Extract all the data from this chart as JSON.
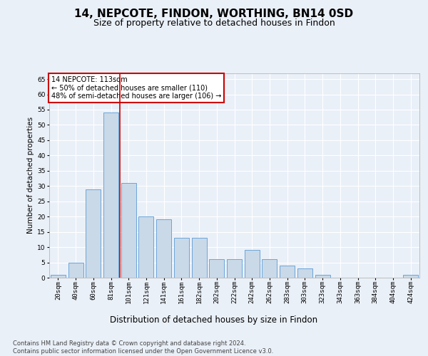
{
  "title": "14, NEPCOTE, FINDON, WORTHING, BN14 0SD",
  "subtitle": "Size of property relative to detached houses in Findon",
  "xlabel": "Distribution of detached houses by size in Findon",
  "ylabel": "Number of detached properties",
  "categories": [
    "20sqm",
    "40sqm",
    "60sqm",
    "81sqm",
    "101sqm",
    "121sqm",
    "141sqm",
    "161sqm",
    "182sqm",
    "202sqm",
    "222sqm",
    "242sqm",
    "262sqm",
    "283sqm",
    "303sqm",
    "323sqm",
    "343sqm",
    "363sqm",
    "384sqm",
    "404sqm",
    "424sqm"
  ],
  "values": [
    1,
    5,
    29,
    54,
    31,
    20,
    19,
    13,
    13,
    6,
    6,
    9,
    6,
    4,
    3,
    1,
    0,
    0,
    0,
    0,
    1
  ],
  "bar_color": "#c9d9e8",
  "bar_edge_color": "#5a9bd5",
  "vline_x": 4.5,
  "vline_color": "#cc0000",
  "annotation_text": "14 NEPCOTE: 113sqm\n← 50% of detached houses are smaller (110)\n48% of semi-detached houses are larger (106) →",
  "annotation_box_color": "#ffffff",
  "annotation_box_edge_color": "#cc0000",
  "ylim": [
    0,
    67
  ],
  "yticks": [
    0,
    5,
    10,
    15,
    20,
    25,
    30,
    35,
    40,
    45,
    50,
    55,
    60,
    65
  ],
  "footer_text": "Contains HM Land Registry data © Crown copyright and database right 2024.\nContains public sector information licensed under the Open Government Licence v3.0.",
  "background_color": "#eaf0f8",
  "plot_bg_color": "#eaf0f8",
  "grid_color": "#ffffff",
  "title_fontsize": 11,
  "subtitle_fontsize": 9,
  "xlabel_fontsize": 8.5,
  "ylabel_fontsize": 7.5,
  "tick_fontsize": 6.5,
  "footer_fontsize": 6,
  "ann_fontsize": 7
}
